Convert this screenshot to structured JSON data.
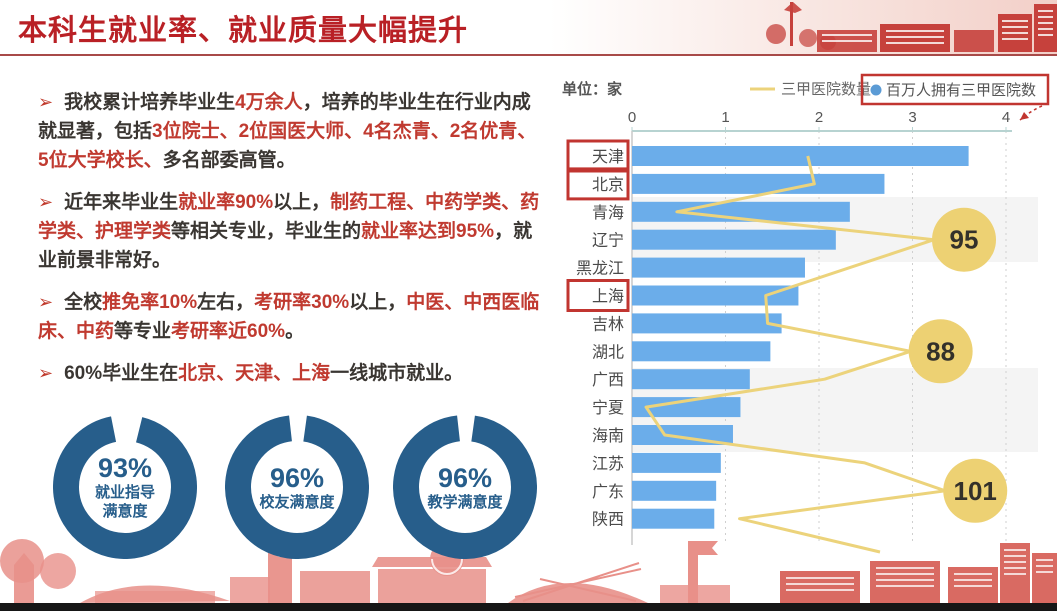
{
  "title": "本科生就业率、就业质量大幅提升",
  "bullets": [
    {
      "segments": [
        {
          "t": "我校累计培养毕业生",
          "c": "dark"
        },
        {
          "t": "4万余人",
          "c": "red"
        },
        {
          "t": "，培养的毕业生在行业内成就显著，包括",
          "c": "dark"
        },
        {
          "t": "3位院士、2位国医大师、4名杰青、2名优青、5位大学校长、",
          "c": "red"
        },
        {
          "t": "多名部委高管。",
          "c": "dark"
        }
      ]
    },
    {
      "segments": [
        {
          "t": "近年来毕业生",
          "c": "dark"
        },
        {
          "t": "就业率90%",
          "c": "red"
        },
        {
          "t": "以上，",
          "c": "dark"
        },
        {
          "t": "制药工程、中药学类、药学类、护理学类",
          "c": "red"
        },
        {
          "t": "等相关专业，毕业生的",
          "c": "dark"
        },
        {
          "t": "就业率达到95%",
          "c": "red"
        },
        {
          "t": "，就业前景非常好。",
          "c": "dark"
        }
      ]
    },
    {
      "segments": [
        {
          "t": "全校",
          "c": "dark"
        },
        {
          "t": "推免率10%",
          "c": "red"
        },
        {
          "t": "左右，",
          "c": "dark"
        },
        {
          "t": "考研率30%",
          "c": "red"
        },
        {
          "t": "以上，",
          "c": "dark"
        },
        {
          "t": "中医、中西医临床、中药",
          "c": "red"
        },
        {
          "t": "等专业",
          "c": "dark"
        },
        {
          "t": "考研率近60%",
          "c": "red"
        },
        {
          "t": "。",
          "c": "dark"
        }
      ]
    },
    {
      "segments": [
        {
          "t": "60%毕业生在",
          "c": "dark"
        },
        {
          "t": "北京、天津、上海",
          "c": "red"
        },
        {
          "t": "一线城市就业。",
          "c": "dark"
        }
      ]
    }
  ],
  "donuts": [
    {
      "percent_label": "93%",
      "percent": 93,
      "label_lines": [
        "就业指导",
        "满意度"
      ]
    },
    {
      "percent_label": "96%",
      "percent": 96,
      "label_lines": [
        "校友满意度"
      ]
    },
    {
      "percent_label": "96%",
      "percent": 96,
      "label_lines": [
        "教学满意度"
      ]
    }
  ],
  "colors": {
    "title_red": "#b92025",
    "text_red": "#c03a30",
    "text_dark": "#3a3632",
    "donut_blue": "#275e8b",
    "bar_blue": "#6badea",
    "line_yellow": "#ecd37b",
    "bubble_yellow": "#edd173",
    "highlight_box_red": "#c13530",
    "legend_dot_blue": "#5b9bd5"
  },
  "chart_data": {
    "type": "bar+line",
    "orientation": "horizontal-bars",
    "unit_label": "单位：家",
    "categories": [
      "天津",
      "北京",
      "青海",
      "辽宁",
      "黑龙江",
      "上海",
      "吉林",
      "湖北",
      "广西",
      "宁夏",
      "海南",
      "江苏",
      "广东",
      "陕西"
    ],
    "highlighted_categories": [
      "天津",
      "北京",
      "上海"
    ],
    "xlim": [
      0,
      4
    ],
    "x_ticks": [
      "0",
      "1",
      "2",
      "3",
      "4"
    ],
    "grid": "dashed-vertical",
    "legend_position": "top-right",
    "series": [
      {
        "name": "百万人拥有三甲医院数",
        "type": "bar",
        "values": [
          3.6,
          2.7,
          2.33,
          2.18,
          1.85,
          1.78,
          1.6,
          1.48,
          1.26,
          1.16,
          1.08,
          0.95,
          0.9,
          0.88
        ]
      },
      {
        "name": "三甲医院数量",
        "type": "line",
        "axis_positions": [
          1.88,
          1.95,
          0.48,
          3.23,
          2.33,
          1.43,
          1.45,
          2.98,
          2.06,
          0.15,
          0.35,
          2.49,
          3.35,
          1.15
        ],
        "labeled_points": [
          {
            "category": "辽宁",
            "value": "95"
          },
          {
            "category": "湖北",
            "value": "88"
          },
          {
            "category": "广东",
            "value": "101"
          }
        ]
      }
    ]
  }
}
